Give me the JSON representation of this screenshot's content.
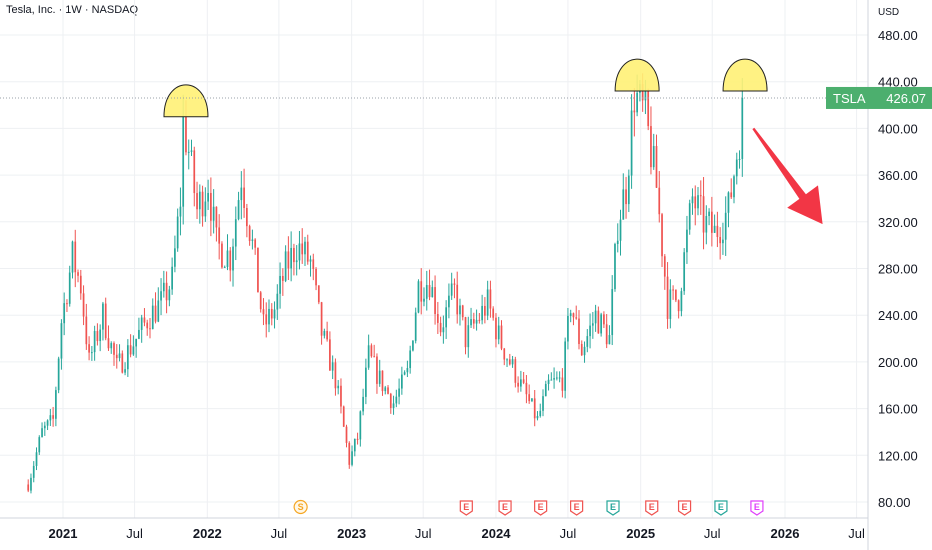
{
  "header": {
    "title": "Tesla, Inc. · 1W · NASDAQ"
  },
  "colors": {
    "up": "#26a69a",
    "down": "#ef5350",
    "price_label_bg": "#4caf6e",
    "arrow": "#f23645",
    "highlight": "#fff176",
    "earnings": "#ef5350",
    "earnings_up": "#26a69a",
    "split": "#f5a623",
    "merge": "#e040fb"
  },
  "chart_data": {
    "type": "candlestick",
    "symbol": "TSLA",
    "currency": "USD",
    "last_price": "426.07",
    "ylim": [
      70,
      495
    ],
    "y_ticks": [
      80,
      120,
      160,
      200,
      240,
      280,
      320,
      360,
      400,
      440,
      480
    ],
    "y_tick_labels": [
      "80.00",
      "120.00",
      "160.00",
      "200.00",
      "240.00",
      "280.00",
      "320.00",
      "360.00",
      "400.00",
      "440.00",
      "480.00"
    ],
    "x_ticks": [
      {
        "label": "2021",
        "bold": true,
        "date": "2021-01-01"
      },
      {
        "label": "Jul",
        "bold": false,
        "date": "2021-07-01"
      },
      {
        "label": "2022",
        "bold": true,
        "date": "2022-01-01"
      },
      {
        "label": "Jul",
        "bold": false,
        "date": "2022-07-01"
      },
      {
        "label": "2023",
        "bold": true,
        "date": "2023-01-01"
      },
      {
        "label": "Jul",
        "bold": false,
        "date": "2023-07-01"
      },
      {
        "label": "2024",
        "bold": true,
        "date": "2024-01-01"
      },
      {
        "label": "Jul",
        "bold": false,
        "date": "2024-07-01"
      },
      {
        "label": "2025",
        "bold": true,
        "date": "2025-01-01"
      },
      {
        "label": "Jul",
        "bold": false,
        "date": "2025-07-01"
      },
      {
        "label": "2026",
        "bold": true,
        "date": "2026-01-01"
      },
      {
        "label": "Jul",
        "bold": false,
        "date": "2026-07-01"
      }
    ],
    "series_close_path": [
      [
        "2020-10-05",
        95
      ],
      [
        "2020-11-09",
        140
      ],
      [
        "2020-12-07",
        150
      ],
      [
        "2020-12-28",
        235
      ],
      [
        "2021-01-25",
        290
      ],
      [
        "2021-02-15",
        265
      ],
      [
        "2021-03-08",
        200
      ],
      [
        "2021-04-12",
        240
      ],
      [
        "2021-05-17",
        195
      ],
      [
        "2021-06-07",
        205
      ],
      [
        "2021-07-05",
        220
      ],
      [
        "2021-08-09",
        240
      ],
      [
        "2021-09-06",
        250
      ],
      [
        "2021-10-04",
        270
      ],
      [
        "2021-10-25",
        340
      ],
      [
        "2021-11-01",
        405
      ],
      [
        "2021-11-15",
        380
      ],
      [
        "2021-12-06",
        330
      ],
      [
        "2022-01-03",
        355
      ],
      [
        "2022-01-24",
        300
      ],
      [
        "2022-02-28",
        290
      ],
      [
        "2022-03-28",
        360
      ],
      [
        "2022-04-25",
        300
      ],
      [
        "2022-05-23",
        230
      ],
      [
        "2022-06-20",
        245
      ],
      [
        "2022-07-18",
        280
      ],
      [
        "2022-08-15",
        300
      ],
      [
        "2022-09-19",
        285
      ],
      [
        "2022-10-17",
        225
      ],
      [
        "2022-11-21",
        185
      ],
      [
        "2022-12-26",
        115
      ],
      [
        "2023-01-16",
        135
      ],
      [
        "2023-02-13",
        205
      ],
      [
        "2023-03-13",
        185
      ],
      [
        "2023-04-17",
        165
      ],
      [
        "2023-05-22",
        190
      ],
      [
        "2023-06-19",
        265
      ],
      [
        "2023-07-17",
        270
      ],
      [
        "2023-08-14",
        230
      ],
      [
        "2023-09-18",
        260
      ],
      [
        "2023-10-16",
        220
      ],
      [
        "2023-11-13",
        235
      ],
      [
        "2023-12-11",
        250
      ],
      [
        "2024-01-15",
        215
      ],
      [
        "2024-02-12",
        195
      ],
      [
        "2024-03-11",
        175
      ],
      [
        "2024-04-15",
        150
      ],
      [
        "2024-05-13",
        180
      ],
      [
        "2024-06-17",
        185
      ],
      [
        "2024-07-08",
        250
      ],
      [
        "2024-08-05",
        210
      ],
      [
        "2024-09-09",
        240
      ],
      [
        "2024-10-14",
        220
      ],
      [
        "2024-11-04",
        320
      ],
      [
        "2024-11-25",
        350
      ],
      [
        "2024-12-16",
        430
      ],
      [
        "2025-01-13",
        410
      ],
      [
        "2025-02-10",
        350
      ],
      [
        "2025-03-10",
        250
      ],
      [
        "2025-04-07",
        255
      ],
      [
        "2025-05-12",
        340
      ],
      [
        "2025-06-09",
        320
      ],
      [
        "2025-07-07",
        310
      ],
      [
        "2025-08-11",
        330
      ],
      [
        "2025-09-08",
        395
      ],
      [
        "2025-09-15",
        426.07
      ]
    ],
    "events": [
      {
        "label": "S",
        "date": "2022-08-25",
        "kind": "split"
      },
      {
        "label": "E",
        "date": "2023-10-18",
        "kind": "earnings"
      },
      {
        "label": "E",
        "date": "2024-01-24",
        "kind": "earnings"
      },
      {
        "label": "E",
        "date": "2024-04-23",
        "kind": "earnings"
      },
      {
        "label": "E",
        "date": "2024-07-23",
        "kind": "earnings"
      },
      {
        "label": "E",
        "date": "2024-10-23",
        "kind": "earnings_up"
      },
      {
        "label": "E",
        "date": "2025-01-29",
        "kind": "earnings"
      },
      {
        "label": "E",
        "date": "2025-04-22",
        "kind": "earnings"
      },
      {
        "label": "E",
        "date": "2025-07-23",
        "kind": "earnings_up"
      },
      {
        "label": "E",
        "date": "2025-10-22",
        "kind": "merge"
      }
    ],
    "annotations": [
      {
        "type": "arc",
        "date": "2021-11-08",
        "price": 410
      },
      {
        "type": "arc",
        "date": "2024-12-23",
        "price": 432
      },
      {
        "type": "arc",
        "date": "2025-09-22",
        "price": 432
      },
      {
        "type": "arrow",
        "from_date": "2025-10-13",
        "from_price": 400,
        "to_date": "2026-04-06",
        "to_price": 318
      },
      {
        "type": "hline",
        "price": 426.07,
        "style": "dotted"
      }
    ]
  }
}
